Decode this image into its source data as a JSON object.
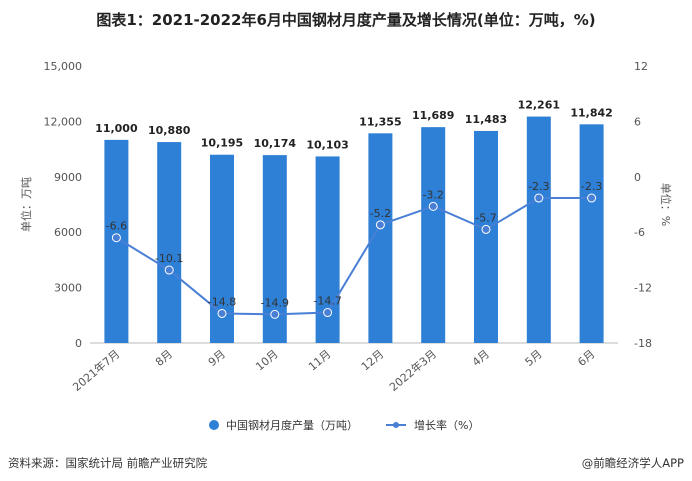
{
  "title": "图表1：2021-2022年6月中国钢材月度产量及增长情况(单位：万吨，%)",
  "source": "资料来源：国家统计局 前瞻产业研究院",
  "credit": "@前瞻经济学人APP",
  "colors": {
    "bar": "#2e7fd6",
    "line": "#4a7fd6",
    "marker": "#4a7fd6"
  },
  "chart_data": {
    "type": "bar+line",
    "categories": [
      "2021年7月",
      "8月",
      "9月",
      "10月",
      "11月",
      "12月",
      "2022年3月",
      "4月",
      "5月",
      "6月"
    ],
    "series": [
      {
        "name": "中国钢材月度产量（万吨）",
        "type": "bar",
        "axis": "left",
        "values": [
          11000,
          10880,
          10195,
          10174,
          10103,
          11355,
          11689,
          11483,
          12261,
          11842
        ],
        "labels": [
          "11,000",
          "10,880",
          "10,195",
          "10,174",
          "10,103",
          "11,355",
          "11,689",
          "11,483",
          "12,261",
          "11,842"
        ]
      },
      {
        "name": "增长率（%）",
        "type": "line",
        "axis": "right",
        "values": [
          -6.6,
          -10.1,
          -14.8,
          -14.9,
          -14.7,
          -5.2,
          -3.2,
          -5.7,
          -2.3,
          -2.3
        ],
        "labels": [
          "-6.6",
          "-10.1",
          "-14.8",
          "-14.9",
          "-14.7",
          "-5.2",
          "-3.2",
          "-5.7",
          "-2.3",
          "-2.3"
        ]
      }
    ],
    "y_left": {
      "label": "单位：万吨",
      "min": 0,
      "max": 15000,
      "ticks": [
        "0",
        "3000",
        "6000",
        "9000",
        "12,000",
        "15,000"
      ]
    },
    "y_right": {
      "label": "单位：%",
      "min": -18,
      "max": 12,
      "ticks": [
        "-18",
        "-12",
        "-6",
        "0",
        "6",
        "12"
      ]
    },
    "legend_position": "bottom",
    "grid": false
  }
}
